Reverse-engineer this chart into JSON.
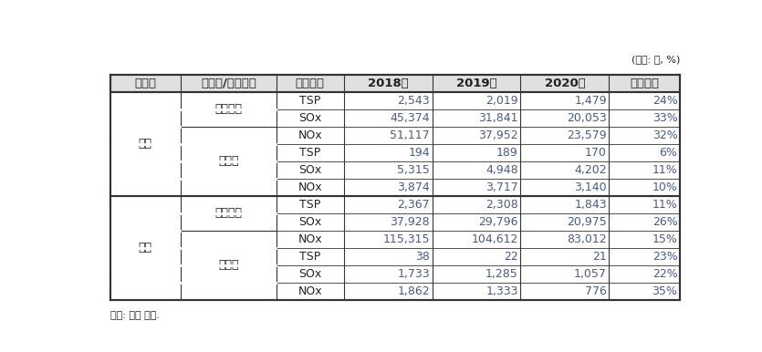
{
  "unit_label": "(단위: 톤, %)",
  "headers": [
    "부문별",
    "수도권/비수도권",
    "배출물질",
    "2018년",
    "2019년",
    "2020년",
    "감축비율"
  ],
  "rows": [
    {
      "부문별": "발전",
      "수도권/비수도권": "비수도권",
      "배출물질": "TSP",
      "2018년": "2,543",
      "2019년": "2,019",
      "2020년": "1,479",
      "감축비율": "24%"
    },
    {
      "부문별": "발전",
      "수도권/비수도권": "비수도권",
      "배출물질": "SOx",
      "2018년": "45,374",
      "2019년": "31,841",
      "2020년": "20,053",
      "감축비율": "33%"
    },
    {
      "부문별": "발전",
      "수도권/비수도권": "수도권",
      "배출물질": "NOx",
      "2018년": "51,117",
      "2019년": "37,952",
      "2020년": "23,579",
      "감축비율": "32%"
    },
    {
      "부문별": "발전",
      "수도권/비수도권": "수도권",
      "배출물질": "TSP",
      "2018년": "194",
      "2019년": "189",
      "2020년": "170",
      "감축비율": "6%"
    },
    {
      "부문별": "발전",
      "수도권/비수도권": "수도권",
      "배출물질": "SOx",
      "2018년": "5,315",
      "2019년": "4,948",
      "2020년": "4,202",
      "감축비율": "11%"
    },
    {
      "부문별": "발전",
      "수도권/비수도권": "수도권",
      "배출물질": "NOx",
      "2018년": "3,874",
      "2019년": "3,717",
      "2020년": "3,140",
      "감축비율": "10%"
    },
    {
      "부문별": "산업",
      "수도권/비수도권": "비수도권",
      "배출물질": "TSP",
      "2018년": "2,367",
      "2019년": "2,308",
      "2020년": "1,843",
      "감축비율": "11%"
    },
    {
      "부문별": "산업",
      "수도권/비수도권": "비수도권",
      "배출물질": "SOx",
      "2018년": "37,928",
      "2019년": "29,796",
      "2020년": "20,975",
      "감축비율": "26%"
    },
    {
      "부문별": "산업",
      "수도권/비수도권": "수도권",
      "배출물질": "NOx",
      "2018년": "115,315",
      "2019년": "104,612",
      "2020년": "83,012",
      "감축비율": "15%"
    },
    {
      "부문별": "산업",
      "수도권/비수도권": "수도권",
      "배출물질": "TSP",
      "2018년": "38",
      "2019년": "22",
      "2020년": "21",
      "감축비율": "23%"
    },
    {
      "부문별": "산업",
      "수도권/비수도권": "수도권",
      "배출물질": "SOx",
      "2018년": "1,733",
      "2019년": "1,285",
      "2020년": "1,057",
      "감축비율": "22%"
    },
    {
      "부문별": "산업",
      "수도권/비수도권": "수도권",
      "배출물질": "NOx",
      "2018년": "1,862",
      "2019년": "1,333",
      "2020년": "776",
      "감축비율": "35%"
    }
  ],
  "footer": "자료: 저자 작성.",
  "bg_color": "#ffffff",
  "header_bg": "#e0e0e0",
  "border_color": "#333333",
  "text_color": "#222222",
  "data_text_color": "#4a5a8a",
  "font_size": 9,
  "header_font_size": 9.5
}
